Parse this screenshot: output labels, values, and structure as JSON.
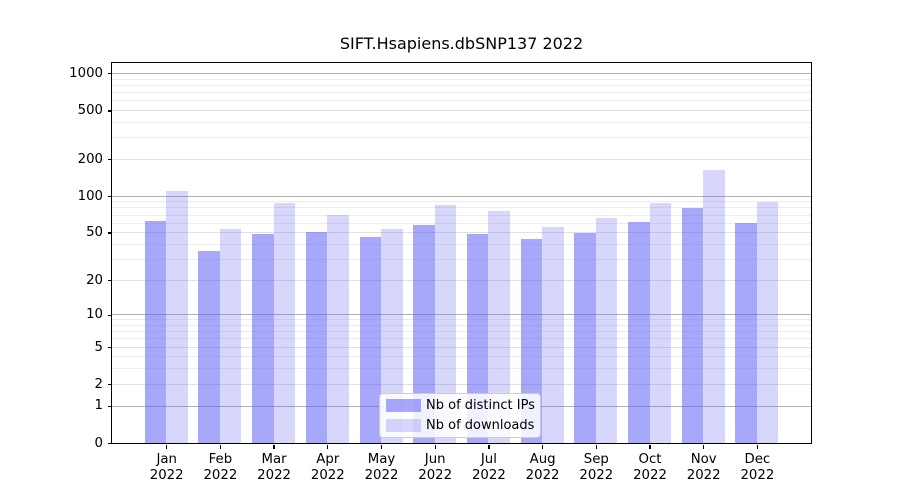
{
  "chart_data": {
    "type": "bar",
    "title": "SIFT.Hsapiens.dbSNP137 2022",
    "categories": [
      "Jan",
      "Feb",
      "Mar",
      "Apr",
      "May",
      "Jun",
      "Jul",
      "Aug",
      "Sep",
      "Oct",
      "Nov",
      "Dec"
    ],
    "x_year_label": "2022",
    "series": [
      {
        "name": "Nb of distinct IPs",
        "values": [
          63,
          35,
          49,
          51,
          46,
          58,
          49,
          44,
          50,
          61,
          80,
          60
        ]
      },
      {
        "name": "Nb of downloads",
        "values": [
          110,
          54,
          88,
          70,
          54,
          84,
          76,
          56,
          66,
          88,
          165,
          89
        ]
      }
    ],
    "xlabel": "",
    "ylabel": "",
    "yscale": "log10(1+y)",
    "yticks": [
      0,
      1,
      2,
      5,
      10,
      20,
      50,
      100,
      200,
      500,
      1000
    ],
    "ylim": [
      0,
      1200
    ],
    "grid": true,
    "legend_position": "lower center"
  },
  "colors": {
    "bar_ips": "rgba(97,97,245,0.55)",
    "bar_downloads": "rgba(97,97,245,0.25)",
    "grid_major": "#b2b2b2",
    "grid_medium": "#e0e0e0",
    "grid_minor": "#ededed",
    "axis": "#000000",
    "text": "#000000",
    "legend_border": "#cccccc",
    "background": "#ffffff"
  }
}
